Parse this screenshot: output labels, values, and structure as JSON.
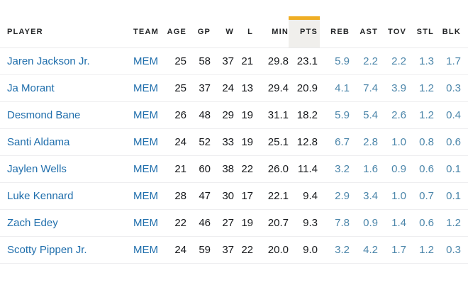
{
  "colors": {
    "accent_yellow": "#efae24",
    "sorted_header_bg": "#f0efec",
    "link_blue": "#1f6eac",
    "stat_blue": "#4c86aa",
    "text_dark": "#17191c",
    "header_text": "#222426",
    "row_border": "#eeeef0"
  },
  "table": {
    "sorted_column": "PTS",
    "columns": [
      {
        "key": "player",
        "label": "PLAYER",
        "align": "left"
      },
      {
        "key": "team",
        "label": "TEAM",
        "align": "left"
      },
      {
        "key": "age",
        "label": "AGE",
        "align": "right"
      },
      {
        "key": "gp",
        "label": "GP",
        "align": "right"
      },
      {
        "key": "w",
        "label": "W",
        "align": "right"
      },
      {
        "key": "l",
        "label": "L",
        "align": "right"
      },
      {
        "key": "min",
        "label": "MIN",
        "align": "right"
      },
      {
        "key": "pts",
        "label": "PTS",
        "align": "right"
      },
      {
        "key": "reb",
        "label": "REB",
        "align": "right"
      },
      {
        "key": "ast",
        "label": "AST",
        "align": "right"
      },
      {
        "key": "tov",
        "label": "TOV",
        "align": "right"
      },
      {
        "key": "stl",
        "label": "STL",
        "align": "right"
      },
      {
        "key": "blk",
        "label": "BLK",
        "align": "right"
      }
    ],
    "rows": [
      {
        "player": "Jaren Jackson Jr.",
        "team": "MEM",
        "age": "25",
        "gp": "58",
        "w": "37",
        "l": "21",
        "min": "29.8",
        "pts": "23.1",
        "reb": "5.9",
        "ast": "2.2",
        "tov": "2.2",
        "stl": "1.3",
        "blk": "1.7"
      },
      {
        "player": "Ja Morant",
        "team": "MEM",
        "age": "25",
        "gp": "37",
        "w": "24",
        "l": "13",
        "min": "29.4",
        "pts": "20.9",
        "reb": "4.1",
        "ast": "7.4",
        "tov": "3.9",
        "stl": "1.2",
        "blk": "0.3"
      },
      {
        "player": "Desmond Bane",
        "team": "MEM",
        "age": "26",
        "gp": "48",
        "w": "29",
        "l": "19",
        "min": "31.1",
        "pts": "18.2",
        "reb": "5.9",
        "ast": "5.4",
        "tov": "2.6",
        "stl": "1.2",
        "blk": "0.4"
      },
      {
        "player": "Santi Aldama",
        "team": "MEM",
        "age": "24",
        "gp": "52",
        "w": "33",
        "l": "19",
        "min": "25.1",
        "pts": "12.8",
        "reb": "6.7",
        "ast": "2.8",
        "tov": "1.0",
        "stl": "0.8",
        "blk": "0.6"
      },
      {
        "player": "Jaylen Wells",
        "team": "MEM",
        "age": "21",
        "gp": "60",
        "w": "38",
        "l": "22",
        "min": "26.0",
        "pts": "11.4",
        "reb": "3.2",
        "ast": "1.6",
        "tov": "0.9",
        "stl": "0.6",
        "blk": "0.1"
      },
      {
        "player": "Luke Kennard",
        "team": "MEM",
        "age": "28",
        "gp": "47",
        "w": "30",
        "l": "17",
        "min": "22.1",
        "pts": "9.4",
        "reb": "2.9",
        "ast": "3.4",
        "tov": "1.0",
        "stl": "0.7",
        "blk": "0.1"
      },
      {
        "player": "Zach Edey",
        "team": "MEM",
        "age": "22",
        "gp": "46",
        "w": "27",
        "l": "19",
        "min": "20.7",
        "pts": "9.3",
        "reb": "7.8",
        "ast": "0.9",
        "tov": "1.4",
        "stl": "0.6",
        "blk": "1.2"
      },
      {
        "player": "Scotty Pippen Jr.",
        "team": "MEM",
        "age": "24",
        "gp": "59",
        "w": "37",
        "l": "22",
        "min": "20.0",
        "pts": "9.0",
        "reb": "3.2",
        "ast": "4.2",
        "tov": "1.7",
        "stl": "1.2",
        "blk": "0.3"
      }
    ]
  }
}
